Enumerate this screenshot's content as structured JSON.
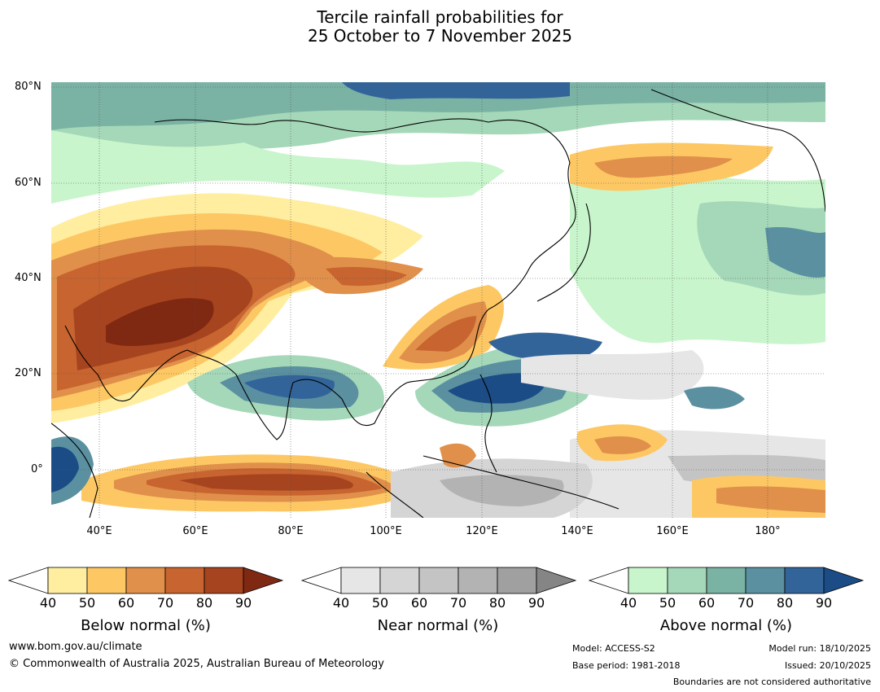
{
  "title": {
    "line1": "Tercile rainfall probabilities for",
    "line2": "25 October to 7 November 2025"
  },
  "lat_labels": [
    "80°N",
    "60°N",
    "40°N",
    "20°N",
    "0°"
  ],
  "lon_labels": [
    "40°E",
    "60°E",
    "80°E",
    "100°E",
    "120°E",
    "140°E",
    "160°E",
    "180°"
  ],
  "colorbars": {
    "below": {
      "label": "Below normal (%)",
      "ticks": [
        "40",
        "50",
        "60",
        "70",
        "80",
        "90"
      ],
      "colors": [
        "#ffeea0",
        "#fdc864",
        "#e0904a",
        "#c8642f",
        "#a6441f",
        "#7f2812"
      ]
    },
    "near": {
      "label": "Near normal (%)",
      "ticks": [
        "40",
        "50",
        "60",
        "70",
        "80",
        "90"
      ],
      "colors": [
        "#e6e6e6",
        "#d5d5d5",
        "#c4c4c4",
        "#b3b3b3",
        "#a0a0a0",
        "#858585"
      ]
    },
    "above": {
      "label": "Above normal (%)",
      "ticks": [
        "40",
        "50",
        "60",
        "70",
        "80",
        "90"
      ],
      "colors": [
        "#c8f5cc",
        "#a5d8b8",
        "#7ab2a4",
        "#5a90a0",
        "#32649a",
        "#1b4c86"
      ]
    }
  },
  "footer": {
    "url": "www.bom.gov.au/climate",
    "copyright": "© Commonwealth of Australia 2025, Australian Bureau of Meteorology",
    "model": "Model: ACCESS-S2",
    "base_period": "Base period: 1981-2018",
    "model_run": "Model run: 18/10/2025",
    "issued": "Issued: 20/10/2025",
    "disclaimer": "Boundaries are not considered authoritative"
  }
}
